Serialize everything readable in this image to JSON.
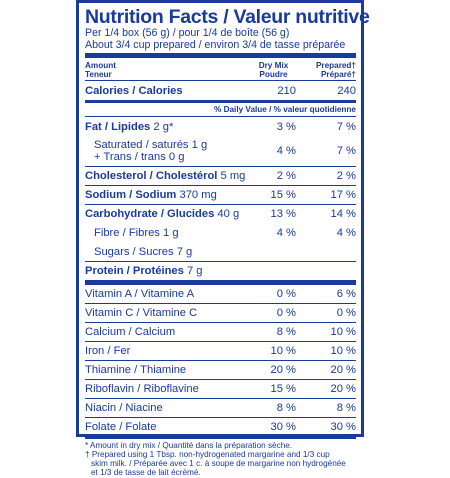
{
  "title": "Nutrition Facts / Valeur nutritive",
  "serving_line1": "Per 1/4 box (56 g) / pour 1/4 de boîte (56 g)",
  "serving_line2": "About 3/4 cup prepared / environ 3/4 de tasse préparée",
  "header": {
    "amount_en": "Amount",
    "amount_fr": "Teneur",
    "col1_en": "Dry Mix",
    "col1_fr": "Poudre",
    "col2_en": "Prepared†",
    "col2_fr": "Préparé†"
  },
  "calories": {
    "label": "Calories / Calories",
    "dry": "210",
    "prepared": "240"
  },
  "dv_header": "% Daily Value / % valeur quotidienne",
  "fat": {
    "label": "Fat / Lipides",
    "amount": "2 g*",
    "dry": "3 %",
    "prepared": "7 %"
  },
  "saturated": {
    "line1": "Saturated / saturés 1 g",
    "line2": "+ Trans / trans 0 g",
    "dry": "4 %",
    "prepared": "7 %"
  },
  "cholesterol": {
    "label": "Cholesterol / Cholestérol",
    "amount": "5 mg",
    "dry": "2 %",
    "prepared": "2 %"
  },
  "sodium": {
    "label": "Sodium / Sodium",
    "amount": "370 mg",
    "dry": "15 %",
    "prepared": "17 %"
  },
  "carbohydrate": {
    "label": "Carbohydrate / Glucides",
    "amount": "40 g",
    "dry": "13 %",
    "prepared": "14 %"
  },
  "fibre": {
    "label": "Fibre / Fibres 1 g",
    "dry": "4 %",
    "prepared": "4 %"
  },
  "sugars": {
    "label": "Sugars / Sucres 7 g"
  },
  "protein": {
    "label": "Protein / Protéines",
    "amount": "7 g"
  },
  "vitamins": [
    {
      "label": "Vitamin A / Vitamine A",
      "dry": "0 %",
      "prepared": "6 %"
    },
    {
      "label": "Vitamin C / Vitamine C",
      "dry": "0 %",
      "prepared": "0 %"
    },
    {
      "label": "Calcium / Calcium",
      "dry": "8 %",
      "prepared": "10 %"
    },
    {
      "label": "Iron / Fer",
      "dry": "10 %",
      "prepared": "10 %"
    },
    {
      "label": "Thiamine / Thiamine",
      "dry": "20 %",
      "prepared": "20 %"
    },
    {
      "label": "Riboflavin / Riboflavine",
      "dry": "15 %",
      "prepared": "20 %"
    },
    {
      "label": "Niacin / Niacine",
      "dry": "8 %",
      "prepared": "8 %"
    },
    {
      "label": "Folate / Folate",
      "dry": "30 %",
      "prepared": "30 %"
    }
  ],
  "footnotes": [
    "* Amount in dry mix / Quantité dans la préparation sèche.",
    "† Prepared using 1 Tbsp. non-hydrogenated margarine and 1/3 cup",
    "   skim milk. / Préparée avec 1 c. à soupe de margarine non hydrogénée",
    "   et 1/3 de tasse de lait écrémé."
  ],
  "colors": {
    "ink": "#1a3a9c",
    "background": "#ffffff"
  }
}
